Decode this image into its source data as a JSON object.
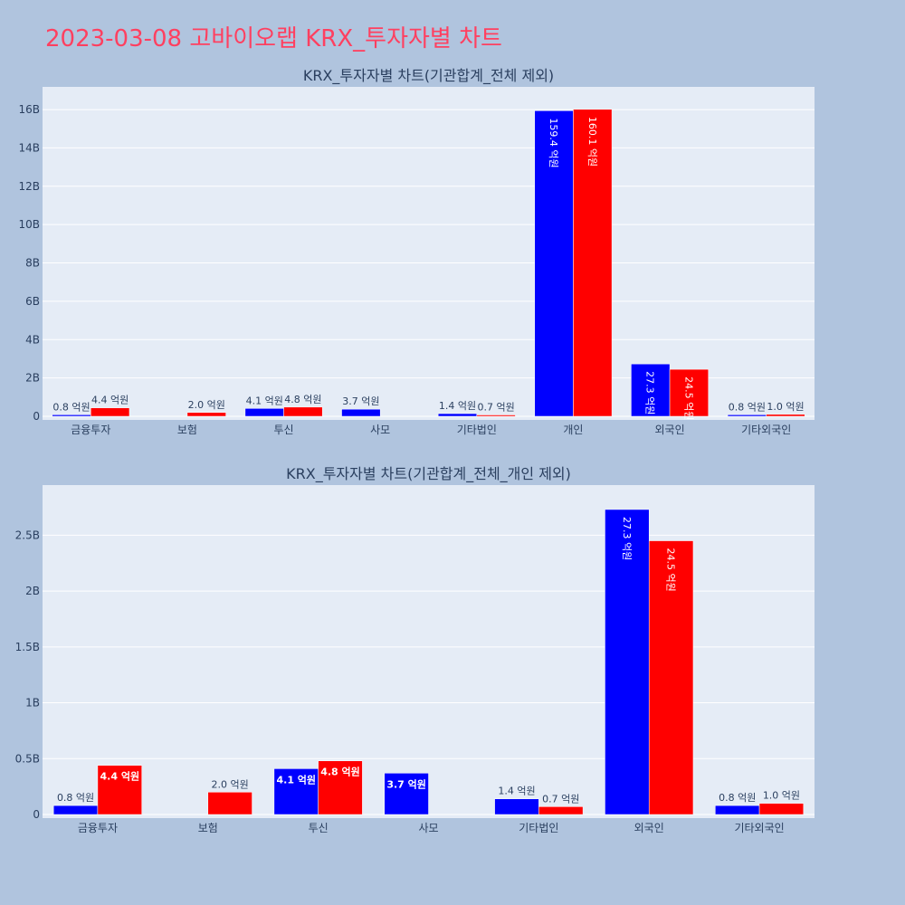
{
  "page_title": "2023-03-08 고바이오랩 KRX_투자자별 차트",
  "colors": {
    "background": "#b0c4de",
    "plot_bg": "#e5ecf6",
    "title": "#ff4060",
    "series_a": "#0000ff",
    "series_b": "#ff0000"
  },
  "chart_data": [
    {
      "type": "bar",
      "title": "KRX_투자자별 차트(기관합계_전체 제외)",
      "categories": [
        "금융투자",
        "보험",
        "투신",
        "사모",
        "기타법인",
        "개인",
        "외국인",
        "기타외국인"
      ],
      "series": [
        {
          "color": "#0000ff",
          "values": [
            0.08,
            null,
            0.41,
            0.37,
            0.14,
            15.94,
            2.73,
            0.08
          ],
          "labels": [
            "0.8 억원",
            "",
            "4.1 억원",
            "3.7 억원",
            "1.4 억원",
            "159.4 억원",
            "27.3 억원",
            "0.8 억원"
          ]
        },
        {
          "color": "#ff0000",
          "values": [
            0.44,
            0.2,
            0.48,
            null,
            0.07,
            16.01,
            2.45,
            0.1
          ],
          "labels": [
            "4.4 억원",
            "2.0 억원",
            "4.8 억원",
            "",
            "0.7 억원",
            "160.1 억원",
            "24.5 억원",
            "1.0 억원"
          ]
        }
      ],
      "yticks": [
        0,
        2,
        4,
        6,
        8,
        10,
        12,
        14,
        16
      ],
      "ytick_labels": [
        "0",
        "2B",
        "4B",
        "6B",
        "8B",
        "10B",
        "12B",
        "14B",
        "16B"
      ],
      "ylim": [
        0,
        16.9
      ],
      "grid": true,
      "xlabel": "",
      "ylabel": ""
    },
    {
      "type": "bar",
      "title": "KRX_투자자별 차트(기관합계_전체_개인 제외)",
      "categories": [
        "금융투자",
        "보험",
        "투신",
        "사모",
        "기타법인",
        "외국인",
        "기타외국인"
      ],
      "series": [
        {
          "color": "#0000ff",
          "values": [
            0.08,
            null,
            0.41,
            0.37,
            0.14,
            2.73,
            0.08
          ],
          "labels": [
            "0.8 억원",
            "",
            "4.1 억원",
            "3.7 억원",
            "1.4 억원",
            "27.3 억원",
            "0.8 억원"
          ]
        },
        {
          "color": "#ff0000",
          "values": [
            0.44,
            0.2,
            0.48,
            null,
            0.07,
            2.45,
            0.1
          ],
          "labels": [
            "4.4 억원",
            "2.0 억원",
            "4.8 억원",
            "",
            "0.7 억원",
            "24.5 억원",
            "1.0 억원"
          ]
        }
      ],
      "yticks": [
        0,
        0.5,
        1,
        1.5,
        2,
        2.5
      ],
      "ytick_labels": [
        "0",
        "0.5B",
        "1B",
        "1.5B",
        "2B",
        "2.5B"
      ],
      "ylim": [
        0,
        2.9
      ],
      "grid": true,
      "xlabel": "",
      "ylabel": ""
    }
  ]
}
